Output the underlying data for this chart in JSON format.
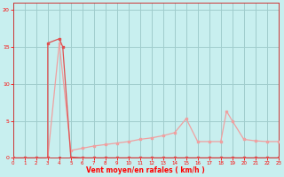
{
  "background_color": "#c8efef",
  "grid_color": "#a0cccc",
  "line_color_dark": "#e05050",
  "line_color_light": "#f0a0a0",
  "xlabel": "Vent moyen/en rafales ( km/h )",
  "xlim": [
    0,
    23
  ],
  "ylim": [
    0,
    21
  ],
  "yticks": [
    0,
    5,
    10,
    15,
    20
  ],
  "xticks": [
    0,
    1,
    2,
    3,
    4,
    5,
    6,
    7,
    8,
    9,
    10,
    11,
    12,
    13,
    14,
    15,
    16,
    17,
    18,
    19,
    20,
    21,
    22,
    23
  ],
  "series_dark_x": [
    0,
    1,
    2,
    3,
    3,
    4,
    4.3,
    5,
    6,
    7,
    8,
    9,
    10,
    11,
    12,
    13,
    14,
    15,
    16,
    17,
    18,
    19,
    20,
    21,
    22,
    23
  ],
  "series_dark_y": [
    0,
    0,
    0,
    0,
    15.5,
    16.1,
    15.0,
    0.1,
    0,
    0,
    0,
    0,
    0,
    0,
    0,
    0,
    0,
    0,
    0,
    0,
    0,
    0,
    0,
    0,
    0,
    0
  ],
  "series_light_x": [
    3,
    4,
    5,
    6,
    7,
    8,
    9,
    10,
    11,
    12,
    13,
    14,
    15,
    16,
    17,
    18,
    18.5,
    19,
    20,
    21,
    22,
    23
  ],
  "series_light_y": [
    0,
    15.5,
    1.0,
    1.3,
    1.6,
    1.8,
    2.0,
    2.2,
    2.5,
    2.7,
    3.0,
    3.4,
    5.3,
    2.2,
    2.2,
    2.2,
    6.3,
    5.0,
    2.5,
    2.3,
    2.2,
    2.2
  ],
  "baseline_x": [
    0,
    1,
    2,
    3,
    4,
    5,
    6,
    7,
    8,
    9,
    10,
    11,
    12,
    13,
    14,
    15,
    16,
    17,
    18,
    19,
    20,
    21,
    22,
    23
  ],
  "baseline_y": [
    0,
    0,
    0,
    0,
    0,
    0,
    0,
    0,
    0,
    0,
    0,
    0,
    0,
    0,
    0,
    0,
    0,
    0,
    0,
    0,
    0,
    0,
    0,
    0
  ]
}
